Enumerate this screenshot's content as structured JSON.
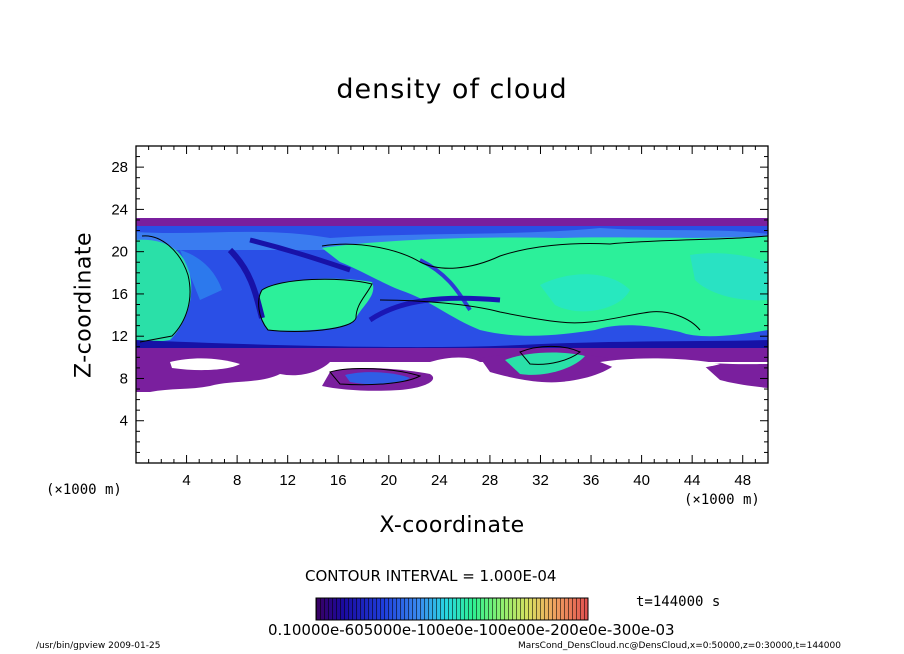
{
  "chart_data": {
    "type": "heatmap",
    "title": "density of cloud",
    "xlabel": "X-coordinate",
    "ylabel": "Z-coordinate",
    "x_unit": "(×1000 m)",
    "x_ticks": [
      4,
      8,
      12,
      16,
      20,
      24,
      28,
      32,
      36,
      40,
      44,
      48
    ],
    "y_ticks": [
      4,
      8,
      12,
      16,
      20,
      24,
      28
    ],
    "xlim": [
      0,
      50
    ],
    "ylim": [
      0,
      30
    ],
    "contour_interval": "CONTOUR INTERVAL = 1.000E-04",
    "colorbar_labels": "0.10000e-605000e-100e0e-100e00e-200e0e-300e-03",
    "colormap": [
      "#3a0060",
      "#1a0aa0",
      "#1f3fdc",
      "#3a8cf0",
      "#28d8e0",
      "#30f090",
      "#8cf070",
      "#d8e060",
      "#f0a060",
      "#e05050"
    ],
    "colors": {
      "purple_layer": "#7a1f9e",
      "dark_blue": "#1a1ac8",
      "blue": "#2f6af0",
      "cyan": "#2cd8e8",
      "green": "#26f09a",
      "contour": "#000000"
    },
    "regions": [
      {
        "name": "top band",
        "z": [
          20.5,
          23.0
        ]
      },
      {
        "name": "middle cloud",
        "z": [
          11.0,
          20.5
        ]
      },
      {
        "name": "purple base",
        "z": [
          9.5,
          11.5
        ]
      },
      {
        "name": "lower fragments",
        "z": [
          6.5,
          9.5
        ]
      }
    ]
  },
  "time": "t=144000 s",
  "footer": {
    "left": "/usr/bin/gpview  2009-01-25",
    "right": "MarsCond_DensCloud.nc@DensCloud,x=0:50000,z=0:30000,t=144000"
  }
}
